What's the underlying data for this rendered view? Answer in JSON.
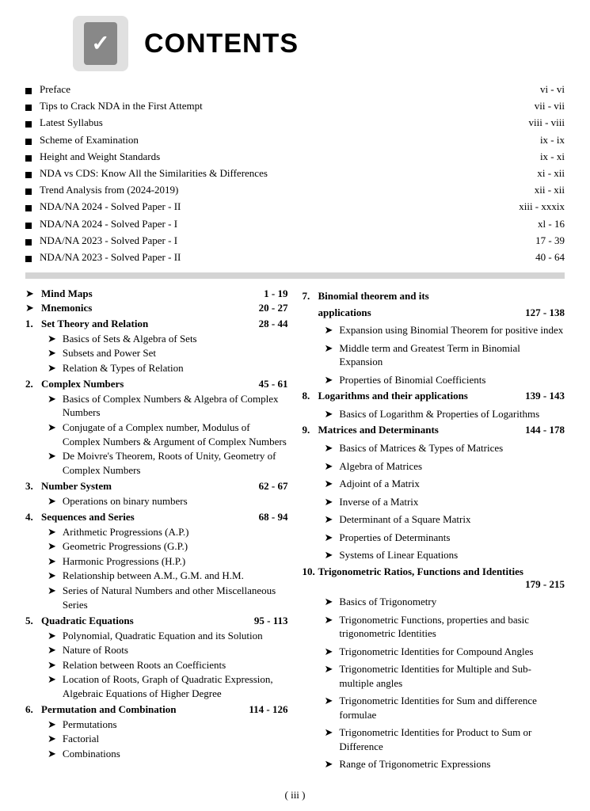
{
  "title": "CONTENTS",
  "page_number": "( iii )",
  "front_matter": [
    {
      "label": "Preface",
      "pages": "vi  -  vi"
    },
    {
      "label": "Tips to Crack NDA in the First Attempt",
      "pages": "vii  -  vii"
    },
    {
      "label": "Latest Syllabus",
      "pages": "viii  -  viii"
    },
    {
      "label": "Scheme of Examination",
      "pages": "ix  -  ix"
    },
    {
      "label": "Height and Weight Standards",
      "pages": "ix  -  xi"
    },
    {
      "label": "NDA vs CDS: Know All the Similarities & Differences",
      "pages": "xi  -  xii"
    },
    {
      "label": "Trend Analysis from (2024-2019)",
      "pages": "xii  -  xii"
    },
    {
      "label": "NDA/NA 2024 - Solved Paper - II",
      "pages": "xiii   -  xxxix"
    },
    {
      "label": "NDA/NA 2024 - Solved Paper - I",
      "pages": "xl  -  16"
    },
    {
      "label": "NDA/NA 2023 - Solved Paper - I",
      "pages": "17  -  39"
    },
    {
      "label": "NDA/NA 2023 - Solved Paper - II",
      "pages": "40  -  64"
    }
  ],
  "left_top": [
    {
      "bullet": "➤",
      "label": "Mind Maps",
      "pages": "1  -  19"
    },
    {
      "bullet": "➤",
      "label": "Mnemonics",
      "pages": "20  -  27"
    }
  ],
  "left_sections": [
    {
      "num": "1.",
      "title": "Set Theory and Relation",
      "pages": "28  -  44",
      "subs": [
        "Basics of Sets & Algebra of Sets",
        "Subsets and Power Set",
        "Relation & Types of Relation"
      ]
    },
    {
      "num": "2.",
      "title": "Complex Numbers",
      "pages": "45  -  61",
      "subs": [
        "Basics of Complex Numbers & Algebra of Complex Numbers",
        "Conjugate of a Complex number, Modulus of Complex Numbers & Argument of Complex Numbers",
        "De Moivre's Theorem, Roots of Unity, Geometry of Complex Numbers"
      ]
    },
    {
      "num": "3.",
      "title": "Number System",
      "pages": "62  -  67",
      "subs": [
        "Operations on binary numbers"
      ]
    },
    {
      "num": "4.",
      "title": "Sequences and Series",
      "pages": "68  -  94",
      "subs": [
        "Arithmetic Progressions (A.P.)",
        "Geometric Progressions (G.P.)",
        "Harmonic Progressions (H.P.)",
        "Relationship between A.M., G.M. and H.M.",
        "Series of Natural Numbers and other Miscellaneous Series"
      ]
    },
    {
      "num": "5.",
      "title": "Quadratic Equations",
      "pages": "95  -  113",
      "subs": [
        "Polynomial, Quadratic Equation and its Solution",
        "Nature of Roots",
        "Relation between Roots an Coefficients",
        "Location of Roots, Graph of Quadratic Expression, Algebraic Equations of Higher Degree"
      ]
    },
    {
      "num": "6.",
      "title": "Permutation and Combination",
      "pages": "114  -  126",
      "subs": [
        "Permutations",
        "Factorial",
        "Combinations"
      ]
    }
  ],
  "right_sections": [
    {
      "num": "7.",
      "title": "Binomial theorem and its applications",
      "pages": "127  -  138",
      "multiline": true,
      "subs": [
        "Expansion using Binomial Theorem for positive index",
        "Middle term and Greatest Term in Binomial Expansion",
        "Properties of Binomial Coefficients"
      ]
    },
    {
      "num": "8.",
      "title": "Logarithms and their applications",
      "pages": "139  -  143",
      "subs": [
        "Basics of Logarithm & Properties of Logarithms"
      ]
    },
    {
      "num": "9.",
      "title": "Matrices and Determinants",
      "pages": "144  -  178",
      "subs": [
        "Basics of Matrices & Types of Matrices",
        "Algebra of Matrices",
        "Adjoint of a Matrix",
        "Inverse of a Matrix",
        "Determinant of a Square Matrix",
        "Properties of Determinants",
        "Systems of Linear Equations"
      ]
    },
    {
      "num": "10.",
      "title": "Trigonometric Ratios, Functions and Identities",
      "pages": "179  -  215",
      "pages_below": true,
      "subs": [
        "Basics of Trigonometry",
        "Trigonometric Functions, properties and basic trigonometric Identities",
        "Trigonometric Identities for Compound Angles",
        "Trigonometric Identities for Multiple and Sub-multiple angles",
        "Trigonometric Identities for Sum and difference formulae",
        "Trigonometric Identities for Product to Sum or Difference",
        "Range of Trigonometric Expressions"
      ]
    }
  ]
}
